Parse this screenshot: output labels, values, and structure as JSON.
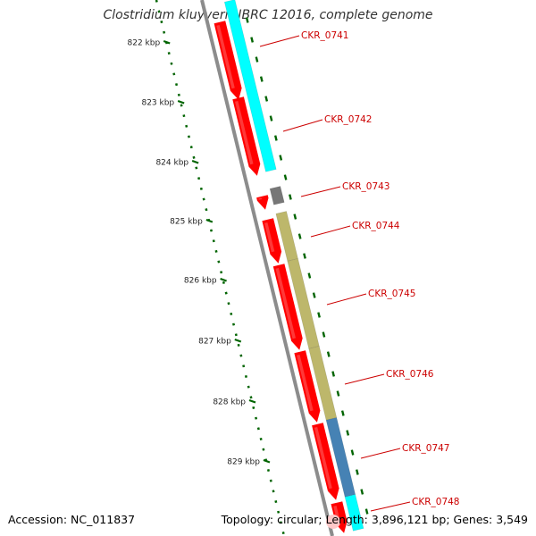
{
  "title": "Clostridium kluyveri NBRC 12016, complete genome",
  "accession_label": "Accession: NC_011837",
  "topology_label": "Topology: circular; Length: 3,896,121 bp; Genes: 3,549",
  "colors": {
    "backbone": "#8c8c8c",
    "cds": "#ff0000",
    "gene_label": "#cc0000",
    "cyan_feature": "#00ffff",
    "gray_feature": "#777777",
    "olive_feature": "#bdb76b",
    "steel_feature": "#4682b4",
    "tick": "#006400"
  },
  "ruler": [
    {
      "label": "822 kbp"
    },
    {
      "label": "823 kbp"
    },
    {
      "label": "824 kbp"
    },
    {
      "label": "825 kbp"
    },
    {
      "label": "826 kbp"
    },
    {
      "label": "827 kbp"
    },
    {
      "label": "828 kbp"
    },
    {
      "label": "829 kbp"
    }
  ],
  "genes": [
    {
      "label": "CKR_0741"
    },
    {
      "label": "CKR_0742"
    },
    {
      "label": "CKR_0743"
    },
    {
      "label": "CKR_0744"
    },
    {
      "label": "CKR_0745"
    },
    {
      "label": "CKR_0746"
    },
    {
      "label": "CKR_0747"
    },
    {
      "label": "CKR_0748"
    }
  ]
}
